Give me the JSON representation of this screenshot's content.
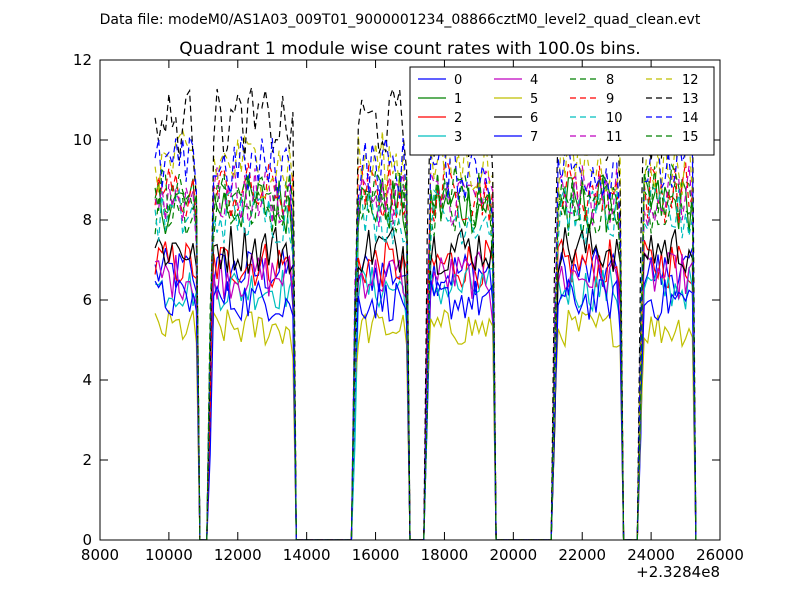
{
  "figure": {
    "suptitle": "Data file: modeM0/AS1A03_009T01_9000001234_08866cztM0_level2_quad_clean.evt"
  },
  "chart_data": {
    "type": "line",
    "title": "Quadrant 1 module wise count rates with 100.0s bins.",
    "xlabel": "",
    "ylabel": "",
    "x_offset_label": "+2.3284e8",
    "xlim": [
      8000,
      26000
    ],
    "ylim": [
      0,
      12
    ],
    "x_ticks": [
      8000,
      10000,
      12000,
      14000,
      16000,
      18000,
      20000,
      22000,
      24000,
      26000
    ],
    "y_ticks": [
      0,
      2,
      4,
      6,
      8,
      10,
      12
    ],
    "grid": false,
    "legend_position": "top-right",
    "legend_columns": 4,
    "segments": [
      {
        "start": 9600,
        "end": 10800
      },
      {
        "start": 11200,
        "end": 13600
      },
      {
        "start": 15400,
        "end": 16900
      },
      {
        "start": 17500,
        "end": 19400
      },
      {
        "start": 21200,
        "end": 23100
      },
      {
        "start": 23700,
        "end": 25200
      }
    ],
    "series": [
      {
        "name": "0",
        "color": "#0000ff",
        "dash": "solid",
        "mean": 6.7
      },
      {
        "name": "1",
        "color": "#008000",
        "dash": "solid",
        "mean": 8.4
      },
      {
        "name": "2",
        "color": "#ff0000",
        "dash": "solid",
        "mean": 6.9
      },
      {
        "name": "3",
        "color": "#00bfbf",
        "dash": "solid",
        "mean": 6.3
      },
      {
        "name": "4",
        "color": "#bf00bf",
        "dash": "solid",
        "mean": 6.6
      },
      {
        "name": "5",
        "color": "#bfbf00",
        "dash": "solid",
        "mean": 5.3
      },
      {
        "name": "6",
        "color": "#000000",
        "dash": "solid",
        "mean": 7.3
      },
      {
        "name": "7",
        "color": "#0000ff",
        "dash": "solid",
        "mean": 6.0
      },
      {
        "name": "8",
        "color": "#008000",
        "dash": "dashed",
        "mean": 8.3
      },
      {
        "name": "9",
        "color": "#ff0000",
        "dash": "dashed",
        "mean": 8.7
      },
      {
        "name": "10",
        "color": "#00bfbf",
        "dash": "dashed",
        "mean": 8.1
      },
      {
        "name": "11",
        "color": "#bf00bf",
        "dash": "dashed",
        "mean": 8.6
      },
      {
        "name": "12",
        "color": "#bfbf00",
        "dash": "dashed",
        "mean": 9.4
      },
      {
        "name": "13",
        "color": "#000000",
        "dash": "dashed",
        "mean": 10.4
      },
      {
        "name": "14",
        "color": "#0000ff",
        "dash": "dashed",
        "mean": 9.3
      },
      {
        "name": "15",
        "color": "#008000",
        "dash": "dashed",
        "mean": 8.6
      }
    ]
  }
}
